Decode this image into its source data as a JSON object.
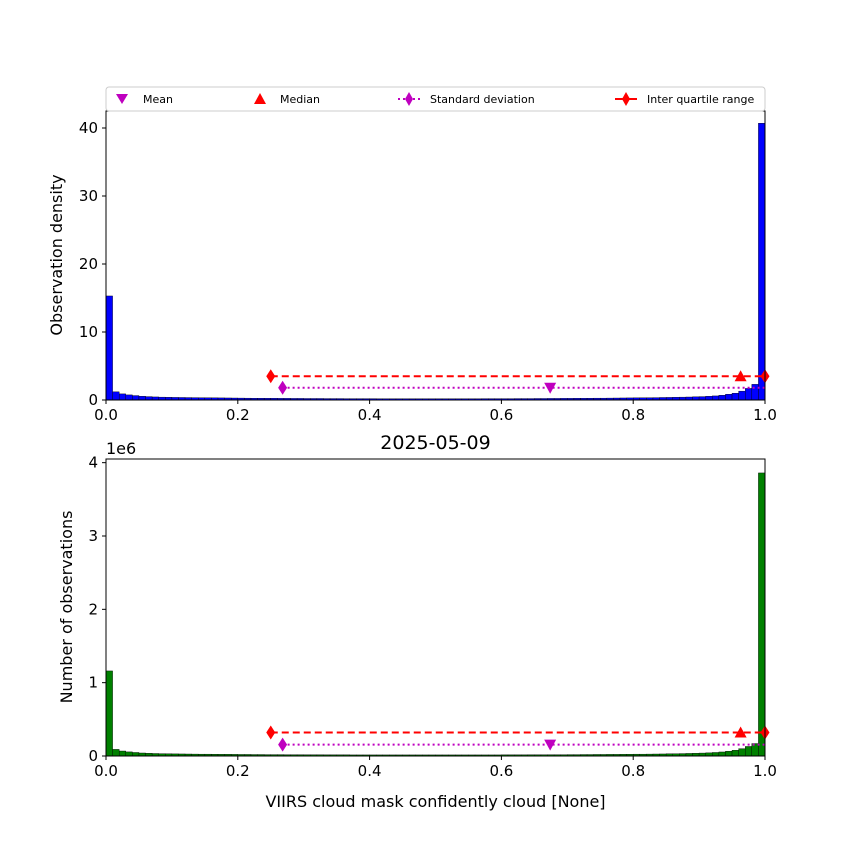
{
  "legend": {
    "mean": "Mean",
    "median": "Median",
    "std": "Standard deviation",
    "iqr": "Inter quartile range"
  },
  "colors": {
    "top_bars": "#0000ff",
    "bottom_bars": "#008000",
    "mean_marker": "#bf00bf",
    "median_marker": "#ff0000",
    "std_line": "#bf00bf",
    "iqr_line": "#ff0000"
  },
  "stats": {
    "mean": 0.674,
    "median": 0.963,
    "std_range": [
      0.268,
      1.0
    ],
    "iqr_range": [
      0.25,
      1.0
    ]
  },
  "chart_data": [
    {
      "type": "bar",
      "title": "",
      "xlabel": "",
      "ylabel": "Observation density",
      "xlim": [
        0.0,
        1.0
      ],
      "ylim": [
        0,
        42.5
      ],
      "xticks": [
        "0.0",
        "0.2",
        "0.4",
        "0.6",
        "0.8",
        "1.0"
      ],
      "yticks": [
        "0",
        "10",
        "20",
        "30",
        "40"
      ],
      "ytick_values": [
        0,
        10,
        20,
        30,
        40
      ],
      "bin_width": 0.01,
      "values": [
        15.3,
        1.2,
        0.9,
        0.75,
        0.65,
        0.55,
        0.5,
        0.45,
        0.42,
        0.4,
        0.38,
        0.37,
        0.36,
        0.35,
        0.34,
        0.33,
        0.32,
        0.31,
        0.3,
        0.29,
        0.28,
        0.27,
        0.26,
        0.26,
        0.25,
        0.25,
        0.24,
        0.24,
        0.23,
        0.23,
        0.22,
        0.22,
        0.22,
        0.21,
        0.21,
        0.21,
        0.2,
        0.2,
        0.2,
        0.2,
        0.2,
        0.19,
        0.19,
        0.19,
        0.19,
        0.19,
        0.19,
        0.19,
        0.19,
        0.19,
        0.19,
        0.19,
        0.19,
        0.19,
        0.19,
        0.19,
        0.19,
        0.2,
        0.2,
        0.2,
        0.2,
        0.2,
        0.21,
        0.21,
        0.21,
        0.22,
        0.22,
        0.23,
        0.23,
        0.24,
        0.24,
        0.25,
        0.25,
        0.26,
        0.27,
        0.27,
        0.28,
        0.29,
        0.3,
        0.31,
        0.32,
        0.33,
        0.34,
        0.35,
        0.37,
        0.38,
        0.4,
        0.42,
        0.44,
        0.47,
        0.5,
        0.55,
        0.6,
        0.7,
        0.85,
        1.0,
        1.3,
        1.7,
        2.3,
        40.7
      ],
      "markers": {
        "mean_y": 1.8,
        "median_y": 3.5,
        "std_y": 1.8,
        "iqr_y": 3.5
      }
    },
    {
      "type": "bar",
      "title": "2025-05-09",
      "xlabel": "VIIRS cloud mask confidently cloud [None]",
      "ylabel": "Number of observations",
      "y_offset_label": "1e6",
      "xlim": [
        0.0,
        1.0
      ],
      "ylim": [
        0,
        4.05
      ],
      "xticks": [
        "0.0",
        "0.2",
        "0.4",
        "0.6",
        "0.8",
        "1.0"
      ],
      "yticks": [
        "0",
        "1",
        "2",
        "3",
        "4"
      ],
      "ytick_values": [
        0,
        1,
        2,
        3,
        4
      ],
      "bin_width": 0.01,
      "values": [
        1.16,
        0.09,
        0.068,
        0.056,
        0.048,
        0.041,
        0.037,
        0.034,
        0.032,
        0.03,
        0.029,
        0.028,
        0.027,
        0.026,
        0.025,
        0.025,
        0.024,
        0.023,
        0.023,
        0.022,
        0.021,
        0.021,
        0.02,
        0.02,
        0.019,
        0.019,
        0.019,
        0.018,
        0.018,
        0.018,
        0.017,
        0.017,
        0.017,
        0.016,
        0.016,
        0.016,
        0.016,
        0.015,
        0.015,
        0.015,
        0.015,
        0.015,
        0.015,
        0.015,
        0.015,
        0.015,
        0.015,
        0.015,
        0.015,
        0.015,
        0.015,
        0.015,
        0.015,
        0.015,
        0.015,
        0.015,
        0.015,
        0.015,
        0.015,
        0.015,
        0.016,
        0.016,
        0.016,
        0.016,
        0.017,
        0.017,
        0.017,
        0.018,
        0.018,
        0.018,
        0.019,
        0.019,
        0.02,
        0.02,
        0.021,
        0.021,
        0.022,
        0.022,
        0.023,
        0.024,
        0.025,
        0.025,
        0.026,
        0.027,
        0.028,
        0.03,
        0.031,
        0.033,
        0.035,
        0.037,
        0.04,
        0.043,
        0.048,
        0.055,
        0.065,
        0.078,
        0.1,
        0.13,
        0.17,
        3.86
      ],
      "markers": {
        "mean_y": 0.155,
        "median_y": 0.32,
        "std_y": 0.155,
        "iqr_y": 0.32
      }
    }
  ]
}
